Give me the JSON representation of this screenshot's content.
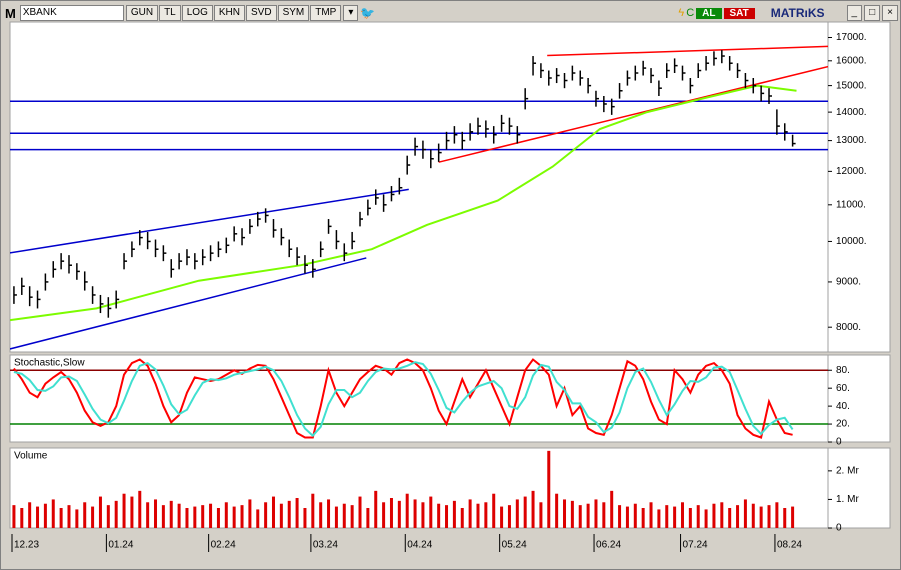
{
  "toolbar": {
    "symbol": "XBANK",
    "logo": "M",
    "buttons": [
      "GUN",
      "TL",
      "LOG",
      "KHN",
      "SVD",
      "SYM",
      "TMP"
    ],
    "buy": "AL",
    "sell": "SAT",
    "brand": "MATRıKS"
  },
  "chart_data": [
    {
      "type": "ohlc",
      "log": true,
      "xlim": [
        0,
        104
      ],
      "ylim": [
        7500,
        17700
      ],
      "yticks": [
        {
          "value": 8000,
          "label": "8000."
        },
        {
          "value": 9000,
          "label": "9000."
        },
        {
          "value": 10000,
          "label": "10000."
        },
        {
          "value": 11000,
          "label": "11000."
        },
        {
          "value": 12000,
          "label": "12000."
        },
        {
          "value": 13000,
          "label": "13000."
        },
        {
          "value": 14000,
          "label": "14000."
        },
        {
          "value": 15000,
          "label": "15000."
        },
        {
          "value": 16000,
          "label": "16000."
        },
        {
          "value": 17000,
          "label": "17000."
        }
      ],
      "color": "#000000",
      "close": [
        8700,
        8900,
        8650,
        8600,
        9000,
        9300,
        9500,
        9400,
        9250,
        9000,
        8700,
        8500,
        8400,
        8600,
        9500,
        9800,
        10100,
        10000,
        9800,
        9700,
        9300,
        9500,
        9600,
        9500,
        9600,
        9700,
        9800,
        9900,
        10200,
        10100,
        10400,
        10600,
        10700,
        10300,
        10100,
        9800,
        9600,
        9400,
        9300,
        9800,
        10400,
        10000,
        9700,
        10000,
        10600,
        10900,
        11200,
        11000,
        11300,
        11500,
        12200,
        12800,
        12700,
        12400,
        12600,
        13000,
        13200,
        13000,
        13300,
        13500,
        13400,
        13200,
        13600,
        13500,
        13200,
        14500,
        15900,
        15600,
        15300,
        15400,
        15200,
        15500,
        15300,
        15000,
        14500,
        14300,
        14200,
        14800,
        15300,
        15500,
        15700,
        15400,
        14900,
        15600,
        15800,
        15500,
        15000,
        15600,
        15900,
        16100,
        16200,
        15900,
        15600,
        15200,
        15000,
        14700,
        14600,
        13500,
        13300,
        12900
      ],
      "high": [
        8900,
        9100,
        8900,
        8800,
        9200,
        9500,
        9700,
        9650,
        9450,
        9250,
        8900,
        8700,
        8650,
        8800,
        9700,
        10000,
        10300,
        10250,
        10050,
        9900,
        9550,
        9700,
        9800,
        9700,
        9800,
        9900,
        10000,
        10100,
        10400,
        10350,
        10600,
        10800,
        10900,
        10600,
        10350,
        10050,
        9850,
        9650,
        9550,
        10000,
        10600,
        10300,
        9950,
        10250,
        10800,
        11150,
        11450,
        11300,
        11550,
        11800,
        12500,
        13100,
        13000,
        12700,
        12900,
        13300,
        13500,
        13300,
        13600,
        13800,
        13700,
        13500,
        13900,
        13800,
        13500,
        14900,
        16200,
        15900,
        15600,
        15700,
        15500,
        15800,
        15600,
        15300,
        14800,
        14600,
        14500,
        15100,
        15600,
        15800,
        16000,
        15700,
        15200,
        15900,
        16100,
        15800,
        15300,
        15900,
        16200,
        16400,
        16450,
        16200,
        15900,
        15500,
        15300,
        15000,
        14900,
        14100,
        13600,
        13200
      ],
      "low": [
        8500,
        8700,
        8450,
        8400,
        8800,
        9100,
        9300,
        9200,
        9050,
        8800,
        8500,
        8300,
        8200,
        8400,
        9300,
        9600,
        9900,
        9800,
        9600,
        9500,
        9100,
        9300,
        9400,
        9300,
        9400,
        9500,
        9600,
        9700,
        10000,
        9900,
        10200,
        10400,
        10500,
        10100,
        9900,
        9600,
        9400,
        9200,
        9100,
        9600,
        10200,
        9800,
        9500,
        9800,
        10400,
        10700,
        11000,
        10800,
        11100,
        11300,
        11900,
        12500,
        12400,
        12100,
        12300,
        12700,
        12900,
        12700,
        13000,
        13200,
        13100,
        12900,
        13300,
        13200,
        12900,
        14100,
        15400,
        15300,
        15000,
        15100,
        14900,
        15200,
        15000,
        14700,
        14200,
        14000,
        13900,
        14500,
        15000,
        15200,
        15400,
        15100,
        14600,
        15300,
        15500,
        15200,
        14700,
        15300,
        15600,
        15800,
        15900,
        15600,
        15300,
        14900,
        14700,
        14400,
        14300,
        13200,
        13000,
        12800
      ],
      "ma": {
        "color": "#7cfc00",
        "x": [
          0,
          11,
          24,
          37,
          46,
          53,
          62,
          69,
          75,
          81,
          88,
          95,
          100
        ],
        "values": [
          8150,
          8400,
          9030,
          9400,
          9800,
          10440,
          11120,
          12150,
          13400,
          14000,
          14500,
          15000,
          14800
        ]
      },
      "hlines": {
        "color": "#0000cc",
        "values": [
          14400,
          13250,
          12700
        ]
      },
      "trendlines": [
        {
          "color": "#0000cc",
          "x": [
            -0.25,
            50.7
          ],
          "values": [
            9700,
            11450
          ]
        },
        {
          "color": "#0000cc",
          "x": [
            -0.25,
            45.3
          ],
          "values": [
            7550,
            9580
          ]
        },
        {
          "color": "#ff0000",
          "x": [
            68.3,
            104
          ],
          "values": [
            16220,
            16610
          ]
        },
        {
          "color": "#ff0000",
          "x": [
            54.5,
            104
          ],
          "values": [
            12290,
            15760
          ]
        }
      ]
    },
    {
      "type": "line",
      "title": "Stochastic,Slow",
      "xlim": [
        0,
        104
      ],
      "ylim": [
        0,
        97
      ],
      "yticks": [
        0,
        {
          "value": 20,
          "label": "20."
        },
        {
          "value": 40,
          "label": "40."
        },
        {
          "value": 60,
          "label": "60."
        },
        {
          "value": 80,
          "label": "80."
        }
      ],
      "levels": [
        {
          "value": 80,
          "color": "#8b0000"
        },
        {
          "value": 20,
          "color": "#008000"
        }
      ],
      "series": [
        {
          "color": "#ff0000",
          "values": [
            82,
            70,
            55,
            50,
            65,
            72,
            78,
            70,
            55,
            35,
            22,
            18,
            22,
            40,
            75,
            88,
            92,
            85,
            65,
            40,
            22,
            30,
            55,
            72,
            70,
            68,
            70,
            75,
            80,
            76,
            82,
            86,
            85,
            70,
            50,
            30,
            10,
            5,
            5,
            40,
            80,
            55,
            40,
            55,
            70,
            78,
            85,
            82,
            75,
            88,
            92,
            88,
            80,
            60,
            35,
            20,
            45,
            70,
            50,
            65,
            80,
            60,
            40,
            20,
            50,
            80,
            92,
            85,
            75,
            40,
            60,
            30,
            40,
            15,
            10,
            8,
            30,
            60,
            90,
            85,
            70,
            45,
            25,
            20,
            80,
            70,
            55,
            75,
            85,
            88,
            80,
            65,
            30,
            15,
            8,
            5,
            45,
            25,
            10,
            8
          ]
        },
        {
          "color": "#40e0d0",
          "values": [
            78,
            76,
            69,
            58,
            57,
            62,
            72,
            73,
            68,
            53,
            37,
            25,
            21,
            27,
            46,
            68,
            85,
            88,
            81,
            63,
            42,
            31,
            36,
            52,
            66,
            70,
            69,
            71,
            75,
            77,
            79,
            81,
            84,
            80,
            68,
            50,
            30,
            15,
            7,
            17,
            42,
            58,
            58,
            50,
            55,
            68,
            78,
            82,
            81,
            82,
            85,
            89,
            87,
            76,
            58,
            38,
            33,
            45,
            55,
            62,
            65,
            68,
            60,
            40,
            37,
            50,
            74,
            86,
            84,
            67,
            58,
            43,
            43,
            28,
            22,
            11,
            16,
            33,
            60,
            78,
            82,
            67,
            47,
            30,
            42,
            57,
            68,
            67,
            72,
            83,
            84,
            78,
            58,
            37,
            18,
            9,
            19,
            25,
            27,
            14
          ]
        }
      ]
    },
    {
      "type": "bar",
      "title": "Volume",
      "xlim": [
        0,
        104
      ],
      "ylim": [
        0,
        2800000
      ],
      "color": "#dd0000",
      "yticks": [
        0,
        {
          "value": 1000000,
          "label": "1. Mr"
        },
        {
          "value": 2000000,
          "label": "2. Mr"
        }
      ],
      "xticks": [
        {
          "value": 0,
          "label": "12.23"
        },
        {
          "value": 12,
          "label": "01.24"
        },
        {
          "value": 25,
          "label": "02.24"
        },
        {
          "value": 38,
          "label": "03.24"
        },
        {
          "value": 50,
          "label": "04.24"
        },
        {
          "value": 62,
          "label": "05.24"
        },
        {
          "value": 74,
          "label": "06.24"
        },
        {
          "value": 85,
          "label": "07.24"
        },
        {
          "value": 97,
          "label": "08.24"
        }
      ],
      "values": [
        800000,
        700000,
        900000,
        750000,
        850000,
        1000000,
        700000,
        800000,
        650000,
        900000,
        750000,
        1100000,
        800000,
        950000,
        1200000,
        1100000,
        1300000,
        900000,
        1000000,
        800000,
        950000,
        850000,
        700000,
        750000,
        800000,
        850000,
        700000,
        900000,
        750000,
        800000,
        1000000,
        650000,
        900000,
        1100000,
        850000,
        950000,
        1050000,
        700000,
        1200000,
        900000,
        1000000,
        750000,
        850000,
        800000,
        1100000,
        700000,
        1300000,
        900000,
        1050000,
        950000,
        1200000,
        1000000,
        900000,
        1100000,
        850000,
        800000,
        950000,
        700000,
        1000000,
        850000,
        900000,
        1200000,
        750000,
        800000,
        1000000,
        1100000,
        1300000,
        900000,
        2700000,
        1200000,
        1000000,
        950000,
        800000,
        850000,
        1000000,
        900000,
        1300000,
        800000,
        750000,
        850000,
        700000,
        900000,
        650000,
        800000,
        750000,
        900000,
        700000,
        800000,
        650000,
        850000,
        900000,
        700000,
        800000,
        1000000,
        850000,
        750000,
        800000,
        900000,
        700000,
        750000
      ]
    }
  ]
}
